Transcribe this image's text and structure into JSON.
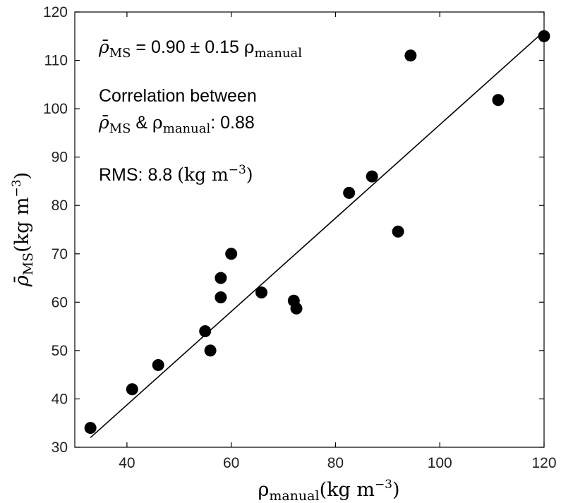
{
  "chart_data": {
    "type": "scatter",
    "title": "",
    "xlabel": {
      "symbol": "ρ",
      "subscript": "manual",
      "units": "(kg m",
      "units_exp": "−3",
      "units_close": ")"
    },
    "ylabel": {
      "symbol": "ρ̄",
      "subscript": "MS",
      "units": "(kg m",
      "units_exp": "−3",
      "units_close": ")"
    },
    "xlim": [
      30,
      120
    ],
    "ylim": [
      30,
      120
    ],
    "xticks": [
      40,
      60,
      80,
      100,
      120
    ],
    "yticks": [
      30,
      40,
      50,
      60,
      70,
      80,
      90,
      100,
      110,
      120
    ],
    "grid": false,
    "marker_color": "#000000",
    "line_color": "#000000",
    "fit_line": {
      "x": [
        33,
        120
      ],
      "y": [
        32,
        116
      ]
    },
    "points": [
      {
        "x": 33,
        "y": 34
      },
      {
        "x": 41,
        "y": 42
      },
      {
        "x": 46,
        "y": 47
      },
      {
        "x": 55,
        "y": 54
      },
      {
        "x": 56,
        "y": 50
      },
      {
        "x": 58,
        "y": 61
      },
      {
        "x": 58,
        "y": 65
      },
      {
        "x": 60,
        "y": 70
      },
      {
        "x": 65.8,
        "y": 62
      },
      {
        "x": 72,
        "y": 60.3
      },
      {
        "x": 72.5,
        "y": 58.7
      },
      {
        "x": 82.6,
        "y": 82.6
      },
      {
        "x": 87,
        "y": 86
      },
      {
        "x": 92,
        "y": 74.6
      },
      {
        "x": 94.4,
        "y": 111
      },
      {
        "x": 111.2,
        "y": 101.8
      },
      {
        "x": 120,
        "y": 115
      }
    ],
    "annotations": {
      "equation": {
        "lhs_symbol": "ρ̄",
        "lhs_sub": "MS",
        "middle": " = 0.90 ± 0.15 ",
        "rhs_symbol": "ρ",
        "rhs_sub": "manual"
      },
      "correlation": {
        "line1": "Correlation between",
        "sym1": "ρ̄",
        "sub1": "MS",
        "amp": " & ",
        "sym2": "ρ",
        "sub2": "manual",
        "value": ": 0.88"
      },
      "rms": {
        "label": "RMS: 8.8 ",
        "units": "(kg m",
        "units_exp": "−3",
        "units_close": ")"
      }
    }
  }
}
